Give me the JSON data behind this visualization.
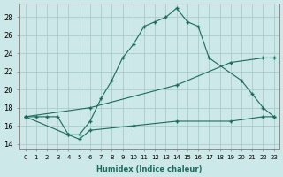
{
  "xlabel": "Humidex (Indice chaleur)",
  "background_color": "#cce8e8",
  "grid_color": "#aacccc",
  "line_color": "#1a6b5a",
  "xlim": [
    -0.5,
    23.5
  ],
  "ylim": [
    13.5,
    29.5
  ],
  "xticks": [
    0,
    1,
    2,
    3,
    4,
    5,
    6,
    7,
    8,
    9,
    10,
    11,
    12,
    13,
    14,
    15,
    16,
    17,
    18,
    19,
    20,
    21,
    22,
    23
  ],
  "yticks": [
    14,
    16,
    18,
    20,
    22,
    24,
    26,
    28
  ],
  "series": [
    {
      "x": [
        0,
        1,
        2,
        3,
        4,
        5,
        6,
        7,
        8,
        9,
        10,
        11,
        12,
        13,
        14,
        15,
        16,
        17,
        20,
        21,
        22,
        23
      ],
      "y": [
        17,
        17,
        17,
        17,
        15,
        15,
        16.5,
        19,
        21,
        23.5,
        25,
        27,
        27.5,
        28,
        29,
        27.5,
        27,
        23.5,
        21,
        19.5,
        18,
        17
      ]
    },
    {
      "x": [
        0,
        6,
        14,
        19,
        22,
        23
      ],
      "y": [
        17,
        18,
        20.5,
        23,
        23.5,
        23.5
      ]
    },
    {
      "x": [
        0,
        4,
        5,
        6,
        10,
        14,
        19,
        22,
        23
      ],
      "y": [
        17,
        15,
        14.5,
        15.5,
        16,
        16.5,
        16.5,
        17,
        17
      ]
    }
  ]
}
